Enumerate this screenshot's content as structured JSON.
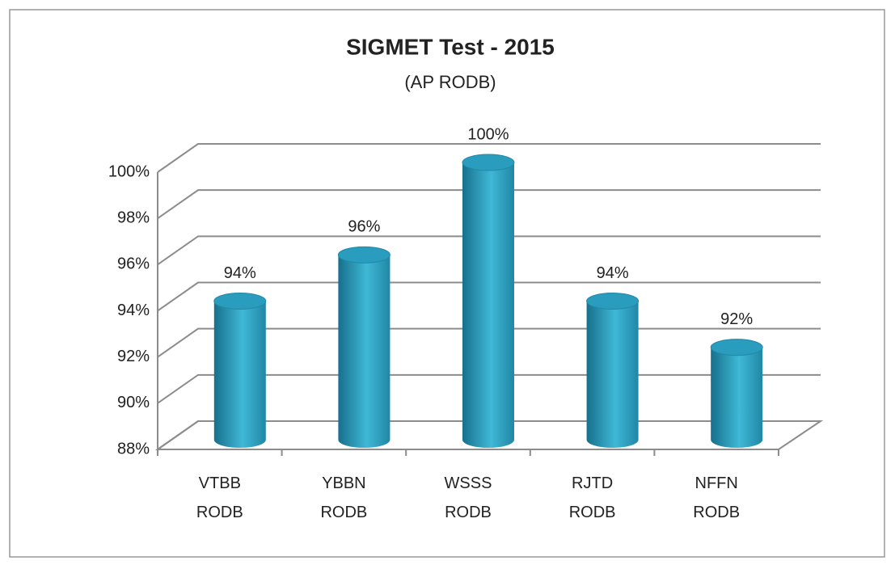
{
  "chart_data": {
    "type": "bar",
    "title": "SIGMET Test - 2015",
    "subtitle": "(AP RODB)",
    "categories": [
      "VTBB RODB",
      "YBBN RODB",
      "WSSS RODB",
      "RJTD RODB",
      "NFFN RODB"
    ],
    "values": [
      94,
      96,
      100,
      94,
      92
    ],
    "value_labels": [
      "94%",
      "96%",
      "100%",
      "94%",
      "92%"
    ],
    "color": "#31a9c9",
    "ylim": [
      88,
      100
    ],
    "yticks": [
      {
        "value": 88,
        "label": "88%"
      },
      {
        "value": 90,
        "label": "90%"
      },
      {
        "value": 92,
        "label": "92%"
      },
      {
        "value": 94,
        "label": "94%"
      },
      {
        "value": 96,
        "label": "96%"
      },
      {
        "value": 98,
        "label": "98%"
      },
      {
        "value": 100,
        "label": "100%"
      }
    ],
    "grid": true
  }
}
